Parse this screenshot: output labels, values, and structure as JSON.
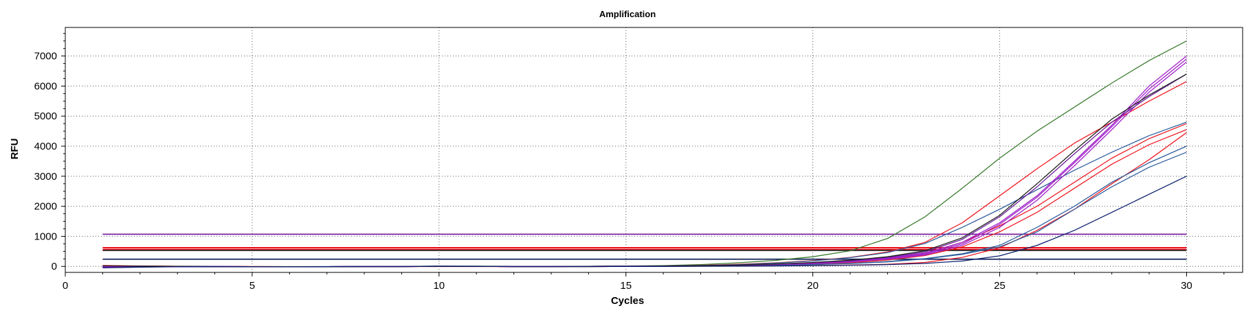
{
  "chart_data": {
    "type": "line",
    "title": "Amplification",
    "xlabel": "Cycles",
    "ylabel": "RFU",
    "xlim": [
      0,
      31.5
    ],
    "ylim": [
      -200,
      7950
    ],
    "xticks": [
      0,
      5,
      10,
      15,
      20,
      25,
      30
    ],
    "yticks": [
      0,
      1000,
      2000,
      3000,
      4000,
      5000,
      6000,
      7000
    ],
    "grid": true,
    "grid_style": "dotted",
    "legend": "none",
    "colors": {
      "green": "#3a7a2e",
      "red": "#ee1c25",
      "blue": "#2f5f9e",
      "purple": "#a020c8",
      "darkpurple": "#6a1b9a",
      "black": "#222222",
      "navy": "#0a1f6e",
      "threshold_purple": "#7a1fa2",
      "threshold_red": "#e8000b",
      "threshold_navy": "#13235e"
    },
    "thresholds": [
      {
        "value": 1070,
        "color": "#7a1fa2"
      },
      {
        "value": 620,
        "color": "#e8000b"
      },
      {
        "value": 560,
        "color": "#e8000b"
      },
      {
        "value": 530,
        "color": "#2a2a2a"
      },
      {
        "value": 240,
        "color": "#13235e"
      }
    ],
    "x": [
      1,
      2,
      3,
      4,
      5,
      6,
      7,
      8,
      9,
      10,
      11,
      12,
      13,
      14,
      15,
      16,
      17,
      18,
      19,
      20,
      21,
      22,
      23,
      24,
      25,
      26,
      27,
      28,
      29,
      30
    ],
    "series": [
      {
        "color": "#3a7a2e",
        "values": [
          10,
          5,
          0,
          -5,
          -10,
          -15,
          -10,
          -5,
          0,
          5,
          5,
          0,
          -5,
          0,
          10,
          25,
          60,
          120,
          200,
          320,
          520,
          930,
          1650,
          2600,
          3600,
          4500,
          5300,
          6100,
          6850,
          7500
        ]
      },
      {
        "color": "#ee1c25",
        "values": [
          -20,
          -10,
          -5,
          -5,
          -10,
          -15,
          -10,
          -5,
          0,
          0,
          0,
          -5,
          -5,
          0,
          5,
          15,
          35,
          70,
          120,
          190,
          300,
          480,
          800,
          1450,
          2350,
          3250,
          4100,
          4800,
          5500,
          6150
        ]
      },
      {
        "color": "#ee1c25",
        "values": [
          30,
          15,
          5,
          0,
          -5,
          -10,
          -10,
          -5,
          -5,
          0,
          0,
          -5,
          -5,
          -5,
          0,
          5,
          15,
          30,
          55,
          90,
          150,
          260,
          440,
          800,
          1350,
          2000,
          2800,
          3600,
          4250,
          4750
        ]
      },
      {
        "color": "#ee1c25",
        "values": [
          20,
          10,
          0,
          -5,
          -5,
          -10,
          -10,
          -5,
          -5,
          0,
          0,
          -5,
          -5,
          -5,
          0,
          5,
          10,
          20,
          40,
          70,
          120,
          210,
          360,
          650,
          1150,
          1800,
          2600,
          3400,
          4050,
          4550
        ]
      },
      {
        "color": "#ee1c25",
        "values": [
          5,
          0,
          -5,
          -5,
          -10,
          -10,
          -10,
          -10,
          -5,
          -5,
          -5,
          -5,
          -5,
          -5,
          0,
          0,
          5,
          10,
          20,
          30,
          45,
          70,
          130,
          300,
          620,
          1200,
          1900,
          2750,
          3550,
          4450
        ]
      },
      {
        "color": "#2f5f9e",
        "values": [
          -10,
          -5,
          0,
          -5,
          -10,
          -10,
          -5,
          -5,
          0,
          0,
          5,
          0,
          -5,
          0,
          5,
          15,
          30,
          60,
          110,
          180,
          290,
          460,
          760,
          1300,
          1900,
          2550,
          3200,
          3800,
          4350,
          4800
        ]
      },
      {
        "color": "#2f5f9e",
        "values": [
          -30,
          -15,
          -10,
          -5,
          -10,
          -15,
          -10,
          -5,
          -5,
          0,
          0,
          -5,
          -5,
          -5,
          0,
          5,
          10,
          20,
          40,
          65,
          100,
          160,
          260,
          420,
          700,
          1300,
          2000,
          2800,
          3450,
          4000
        ]
      },
      {
        "color": "#2f5f9e",
        "values": [
          -40,
          -20,
          -10,
          -10,
          -10,
          -15,
          -10,
          -5,
          -5,
          0,
          0,
          -5,
          -5,
          -5,
          0,
          5,
          10,
          20,
          35,
          60,
          95,
          150,
          250,
          400,
          650,
          1150,
          1900,
          2650,
          3300,
          3800
        ]
      },
      {
        "color": "#a020c8",
        "values": [
          0,
          0,
          -5,
          -5,
          -10,
          -10,
          -10,
          -5,
          -5,
          0,
          0,
          -5,
          -5,
          0,
          5,
          10,
          20,
          40,
          70,
          110,
          180,
          280,
          440,
          800,
          1450,
          2350,
          3500,
          4700,
          6000,
          7000
        ]
      },
      {
        "color": "#a020c8",
        "values": [
          -10,
          -5,
          -5,
          -5,
          -10,
          -10,
          -10,
          -5,
          -5,
          0,
          0,
          -5,
          -5,
          0,
          5,
          10,
          20,
          35,
          65,
          100,
          165,
          260,
          410,
          750,
          1400,
          2300,
          3450,
          4650,
          5900,
          6900
        ]
      },
      {
        "color": "#a020c8",
        "values": [
          -20,
          -10,
          -5,
          -5,
          -10,
          -10,
          -10,
          -5,
          -5,
          0,
          0,
          -5,
          -5,
          0,
          5,
          10,
          18,
          32,
          58,
          92,
          150,
          240,
          380,
          700,
          1300,
          2200,
          3350,
          4550,
          5800,
          6800
        ]
      },
      {
        "color": "#6a1b9a",
        "values": [
          10,
          5,
          0,
          -5,
          -10,
          -10,
          -10,
          -5,
          -5,
          0,
          0,
          -5,
          -5,
          0,
          5,
          10,
          22,
          42,
          75,
          120,
          195,
          300,
          480,
          900,
          1650,
          2650,
          3750,
          4800,
          5650,
          6400
        ]
      },
      {
        "color": "#222222",
        "values": [
          20,
          10,
          0,
          -5,
          -10,
          -10,
          -10,
          -5,
          -5,
          0,
          0,
          -5,
          -5,
          0,
          5,
          12,
          25,
          45,
          80,
          130,
          205,
          320,
          520,
          950,
          1700,
          2750,
          3850,
          4900,
          5700,
          6400
        ]
      },
      {
        "color": "#0a1f6e",
        "values": [
          -50,
          -25,
          -10,
          -10,
          -10,
          -15,
          -10,
          -5,
          -5,
          10,
          5,
          -5,
          -5,
          -5,
          0,
          0,
          5,
          10,
          15,
          25,
          40,
          60,
          100,
          180,
          350,
          700,
          1200,
          1800,
          2400,
          3000
        ]
      }
    ]
  }
}
